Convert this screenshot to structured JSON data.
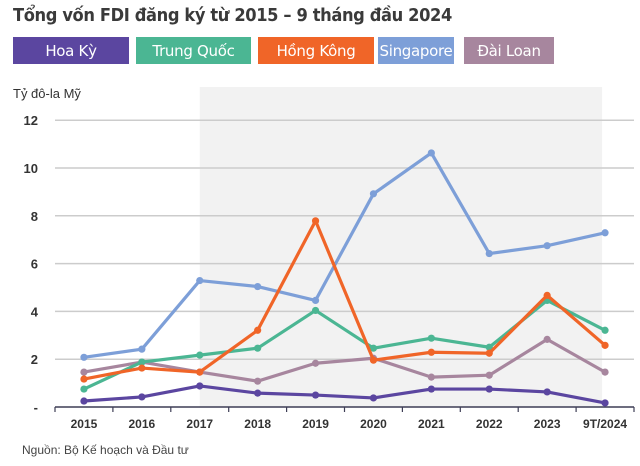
{
  "chart_data": {
    "type": "line",
    "title": "Tổng vốn FDI đăng ký từ 2015 – 9 tháng đầu 2024",
    "ylabel": "Tỷ đô-la Mỹ",
    "xlabel": "",
    "ylim": [
      0,
      12
    ],
    "yticks": [
      0,
      2,
      4,
      6,
      8,
      10,
      12
    ],
    "ytick_labels": [
      "-",
      "2",
      "4",
      "6",
      "8",
      "10",
      "12"
    ],
    "grid": true,
    "shaded_range": [
      "2017",
      "9T/2024"
    ],
    "categories": [
      "2015",
      "2016",
      "2017",
      "2018",
      "2019",
      "2020",
      "2021",
      "2022",
      "2023",
      "9T/2024"
    ],
    "legend_position": "top",
    "series": [
      {
        "name": "Hoa Kỳ",
        "color": "#5b46a0",
        "values": [
          0.25,
          0.42,
          0.88,
          0.58,
          0.5,
          0.38,
          0.75,
          0.75,
          0.63,
          0.17
        ]
      },
      {
        "name": "Trung Quốc",
        "color": "#4bb693",
        "values": [
          0.75,
          1.88,
          2.17,
          2.46,
          4.04,
          2.46,
          2.88,
          2.5,
          4.46,
          3.21
        ]
      },
      {
        "name": "Hồng Kông",
        "color": "#f06528",
        "values": [
          1.17,
          1.63,
          1.46,
          3.21,
          7.79,
          1.96,
          2.29,
          2.25,
          4.67,
          2.58
        ]
      },
      {
        "name": "Singapore",
        "color": "#7d9fd8",
        "values": [
          2.08,
          2.42,
          5.29,
          5.04,
          4.46,
          8.92,
          10.63,
          6.42,
          6.75,
          7.29
        ]
      },
      {
        "name": "Đài Loan",
        "color": "#a7869e",
        "values": [
          1.46,
          1.88,
          1.46,
          1.08,
          1.83,
          2.04,
          1.25,
          1.33,
          2.83,
          1.46
        ]
      }
    ],
    "source": "Nguồn: Bộ Kế hoạch và Đầu tư"
  }
}
